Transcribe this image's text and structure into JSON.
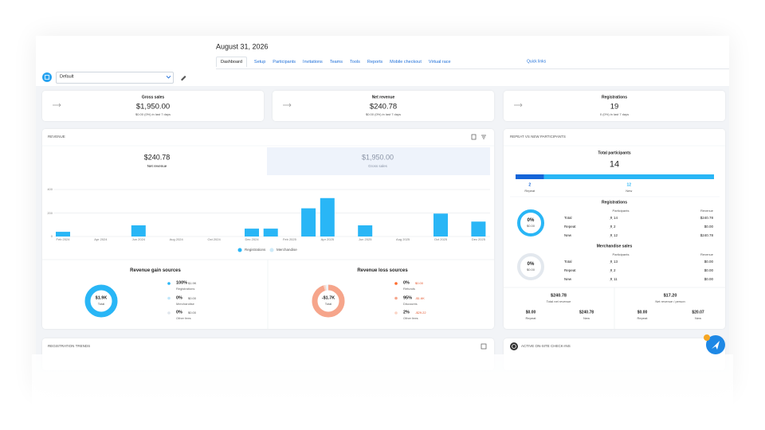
{
  "header": {
    "date": "August 31, 2026",
    "tabs": [
      "Dashboard",
      "Setup",
      "Participants",
      "Invitations",
      "Teams",
      "Tools",
      "Reports",
      "Mobile checkout",
      "Virtual race"
    ],
    "quick_links": "Quick links",
    "view": "Default"
  },
  "stats": [
    {
      "title": "Gross sales",
      "value": "$1,950.00",
      "change": "$0.00 (0%) in last 7 days"
    },
    {
      "title": "Net revenue",
      "value": "$240.78",
      "change": "$0.00 (0%) in last 7 days"
    },
    {
      "title": "Registrations",
      "value": "19",
      "change": "0 (0%) in last 7 days"
    }
  ],
  "revenue": {
    "title": "REVENUE",
    "tabs": [
      {
        "value": "$240.78",
        "label": "Net revenue"
      },
      {
        "value": "$1,950.00",
        "label": "Gross sales"
      }
    ]
  },
  "chart_data": {
    "type": "bar",
    "stacked": true,
    "categories": [
      "Feb 2024",
      null,
      "Apr 2024",
      null,
      "Jun 2024",
      null,
      "Aug 2024",
      null,
      "Oct 2024",
      null,
      "Dec 2024",
      null,
      "Feb 2025",
      null,
      "Apr 2025",
      null,
      "Jun 2025",
      null,
      "Aug 2025",
      null,
      "Oct 2025",
      null,
      "Dec 2025"
    ],
    "series": [
      {
        "name": "Registrations",
        "color": "#29b6f6",
        "values": [
          40,
          0,
          0,
          0,
          95,
          0,
          0,
          0,
          0,
          0,
          67,
          67,
          0,
          240,
          327,
          0,
          95,
          0,
          0,
          0,
          195,
          0,
          127
        ]
      },
      {
        "name": "Merchandise",
        "color": "#cdeaf8",
        "values": [
          0,
          0,
          0,
          0,
          0,
          0,
          0,
          0,
          0,
          0,
          0,
          0,
          0,
          0,
          0,
          0,
          0,
          0,
          0,
          0,
          0,
          0,
          0
        ]
      }
    ],
    "ylim": [
      0,
      400
    ],
    "yticks": [
      0,
      200,
      400
    ],
    "grid": true
  },
  "gain_sources": {
    "title": "Revenue gain sources",
    "total": "$1.9K",
    "total_label": "Total",
    "items": [
      {
        "value": 100,
        "value_label": "100%",
        "amount": "$1.9K",
        "name": "Registrations",
        "color": "#29b6f6"
      },
      {
        "value": 0,
        "value_label": "0%",
        "amount": "$0.00",
        "name": "Merchandise",
        "color": "#bfe6fa"
      },
      {
        "value": 0,
        "value_label": "0%",
        "amount": "$0.00",
        "name": "Other fees",
        "color": "#dfe5ec"
      }
    ]
  },
  "loss_sources": {
    "title": "Revenue loss sources",
    "total": "-$1.7K",
    "total_label": "Total",
    "items": [
      {
        "value": 0,
        "value_label": "0%",
        "amount": "$0.00",
        "name": "Refunds",
        "color": "#ff6b2c"
      },
      {
        "value": 95,
        "value_label": "95%",
        "amount": "-$1.6K",
        "name": "Discounts",
        "color": "#f6a58b"
      },
      {
        "value": 2,
        "value_label": "2%",
        "amount": "-$29.22",
        "name": "Other fees",
        "color": "#fbd3c4"
      }
    ]
  },
  "participants": {
    "title": "REPEAT VS NEW PARTICIPANTS",
    "total_label": "Total participants",
    "total": 14,
    "segments": [
      {
        "name": "Repeat",
        "value": 2,
        "color": "#1565d8"
      },
      {
        "name": "New",
        "value": 12,
        "color": "#29b6f6"
      }
    ],
    "registrations": {
      "title": "Registrations",
      "ring": {
        "percent": "0%",
        "amount": "$0.00"
      },
      "columns": [
        "Participants",
        "Revenue"
      ],
      "rows": [
        {
          "label": "Total",
          "count": 14,
          "revenue": "$240.78"
        },
        {
          "label": "Repeat",
          "count": 2,
          "revenue": "$0.00"
        },
        {
          "label": "New",
          "count": 12,
          "revenue": "$240.78"
        }
      ]
    },
    "merchandise": {
      "title": "Merchandise sales",
      "ring": {
        "percent": "0%",
        "amount": "$0.00"
      },
      "columns": [
        "Participants",
        "Revenue"
      ],
      "rows": [
        {
          "label": "Total",
          "count": 13,
          "revenue": "$0.00"
        },
        {
          "label": "Repeat",
          "count": 2,
          "revenue": "$0.00"
        },
        {
          "label": "New",
          "count": 11,
          "revenue": "$0.00"
        }
      ]
    },
    "summary": [
      {
        "value": "$240.78",
        "label": "Total net revenue",
        "repeat": "$0.00",
        "new": "$240.78"
      },
      {
        "value": "$17.20",
        "label": "Net revenue / person",
        "repeat": "$0.00",
        "new": "$20.07"
      }
    ]
  },
  "bottom": {
    "trends_title": "REGISTRATION TRENDS",
    "checkins_title": "ACTIVE ON-SITE CHECK-INS"
  }
}
